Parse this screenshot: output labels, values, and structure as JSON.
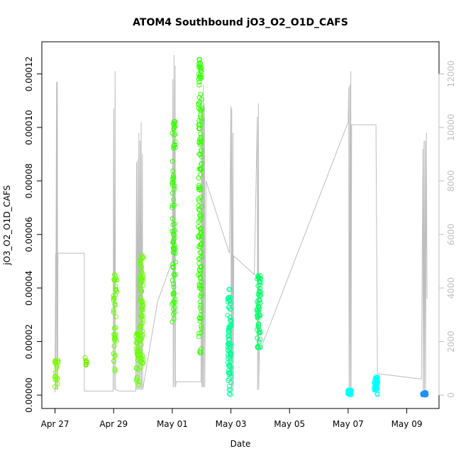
{
  "chart_data": {
    "type": "scatter",
    "title": "ATOM4 Southbound jO3_O2_O1D_CAFS",
    "xlabel": "Date",
    "ylabel": "jO3_O2_O1D_CAFS",
    "x_ticks": [
      "Apr 27",
      "Apr 29",
      "May 01",
      "May 03",
      "May 05",
      "May 07",
      "May 09"
    ],
    "y_ticks": [
      "0.00000",
      "0.00002",
      "0.00004",
      "0.00006",
      "0.00008",
      "0.00010",
      "0.00012"
    ],
    "y2_ticks": [
      "0",
      "2000",
      "4000",
      "6000",
      "8000",
      "10000",
      "12000"
    ],
    "xlim": [
      -0.45,
      13.1
    ],
    "ylim": [
      -5e-06,
      0.000132
    ],
    "y2lim": [
      -500,
      13200
    ],
    "y2_color": "#bebebe",
    "point_marker": "open circle",
    "grid": false,
    "legend": "none",
    "series": [
      {
        "color": "#7cfc00",
        "clusters": [
          {
            "day": 0.05,
            "lo": 3e-06,
            "hi": 1.3e-05,
            "n": 22
          }
        ]
      },
      {
        "color": "#76ee00",
        "clusters": [
          {
            "day": 1.05,
            "lo": 1.1e-05,
            "hi": 1.4e-05,
            "n": 8
          }
        ]
      },
      {
        "color": "#66ff00",
        "clusters": [
          {
            "day": 2.05,
            "lo": 8e-06,
            "hi": 4.7e-05,
            "n": 40
          },
          {
            "day": 2.82,
            "lo": 3e-06,
            "hi": 2.5e-05,
            "n": 30
          },
          {
            "day": 2.95,
            "lo": 1e-05,
            "hi": 5.4e-05,
            "n": 70
          }
        ]
      },
      {
        "color": "#33ff00",
        "clusters": [
          {
            "day": 4.05,
            "lo": 2.7e-05,
            "hi": 0.000103,
            "n": 80
          },
          {
            "day": 4.95,
            "lo": 1.5e-05,
            "hi": 0.000127,
            "n": 150
          }
        ]
      },
      {
        "color": "#00ff99",
        "clusters": [
          {
            "day": 5.95,
            "lo": 0.0,
            "hi": 4e-05,
            "n": 80
          }
        ]
      },
      {
        "color": "#00ff66",
        "clusters": [
          {
            "day": 6.95,
            "lo": 1.7e-05,
            "hi": 4.5e-05,
            "n": 60
          }
        ]
      },
      {
        "color": "#00ffff",
        "clusters": [
          {
            "day": 10.05,
            "lo": 0.0,
            "hi": 2e-06,
            "n": 30
          },
          {
            "day": 10.95,
            "lo": 0.0,
            "hi": 7e-06,
            "n": 40
          }
        ]
      },
      {
        "color": "#1e90ff",
        "clusters": [
          {
            "day": 12.6,
            "lo": 0.0,
            "hi": 1e-06,
            "n": 25
          }
        ]
      }
    ],
    "altitude_ft": [
      [
        0.0,
        100
      ],
      [
        0.02,
        5300
      ],
      [
        0.02,
        200
      ],
      [
        0.05,
        11700
      ],
      [
        0.06,
        200
      ],
      [
        0.08,
        11700
      ],
      [
        0.09,
        200
      ],
      [
        0.1,
        5300
      ],
      [
        1.0,
        5300
      ],
      [
        1.0,
        150
      ],
      [
        1.02,
        150
      ],
      [
        1.98,
        150
      ],
      [
        2.0,
        10700
      ],
      [
        2.02,
        200
      ],
      [
        2.05,
        12100
      ],
      [
        2.06,
        200
      ],
      [
        2.2,
        150
      ],
      [
        2.75,
        150
      ],
      [
        2.78,
        8700
      ],
      [
        2.79,
        200
      ],
      [
        2.82,
        8800
      ],
      [
        2.83,
        200
      ],
      [
        2.86,
        9800
      ],
      [
        2.87,
        200
      ],
      [
        2.9,
        9500
      ],
      [
        2.91,
        200
      ],
      [
        2.94,
        10200
      ],
      [
        2.95,
        200
      ],
      [
        2.98,
        9000
      ],
      [
        2.99,
        200
      ],
      [
        3.5,
        3500
      ],
      [
        4.0,
        5000
      ],
      [
        4.02,
        11800
      ],
      [
        4.03,
        300
      ],
      [
        4.06,
        12700
      ],
      [
        4.07,
        300
      ],
      [
        4.1,
        12300
      ],
      [
        4.11,
        300
      ],
      [
        4.13,
        500
      ],
      [
        4.98,
        500
      ],
      [
        5.0,
        11200
      ],
      [
        5.01,
        300
      ],
      [
        5.03,
        10700
      ],
      [
        5.04,
        300
      ],
      [
        5.06,
        11600
      ],
      [
        5.07,
        300
      ],
      [
        5.09,
        10900
      ],
      [
        5.1,
        10200
      ],
      [
        5.11,
        300
      ],
      [
        5.15,
        8000
      ],
      [
        5.95,
        5300
      ],
      [
        6.0,
        10800
      ],
      [
        6.01,
        200
      ],
      [
        6.03,
        10700
      ],
      [
        6.04,
        200
      ],
      [
        6.07,
        9800
      ],
      [
        6.08,
        200
      ],
      [
        6.1,
        5200
      ],
      [
        6.8,
        4500
      ],
      [
        6.9,
        10400
      ],
      [
        6.91,
        200
      ],
      [
        6.94,
        10900
      ],
      [
        6.95,
        200
      ],
      [
        6.97,
        1600
      ],
      [
        10.0,
        10200
      ],
      [
        10.02,
        11500
      ],
      [
        10.03,
        100
      ],
      [
        10.06,
        11600
      ],
      [
        10.07,
        100
      ],
      [
        10.09,
        12100
      ],
      [
        10.1,
        100
      ],
      [
        10.12,
        10100
      ],
      [
        10.95,
        10100
      ],
      [
        11.0,
        800
      ],
      [
        12.5,
        600
      ],
      [
        12.55,
        9200
      ],
      [
        12.56,
        100
      ],
      [
        12.59,
        9500
      ],
      [
        12.6,
        100
      ],
      [
        12.63,
        9500
      ],
      [
        12.64,
        100
      ],
      [
        12.67,
        9800
      ],
      [
        12.69,
        3600
      ]
    ]
  }
}
